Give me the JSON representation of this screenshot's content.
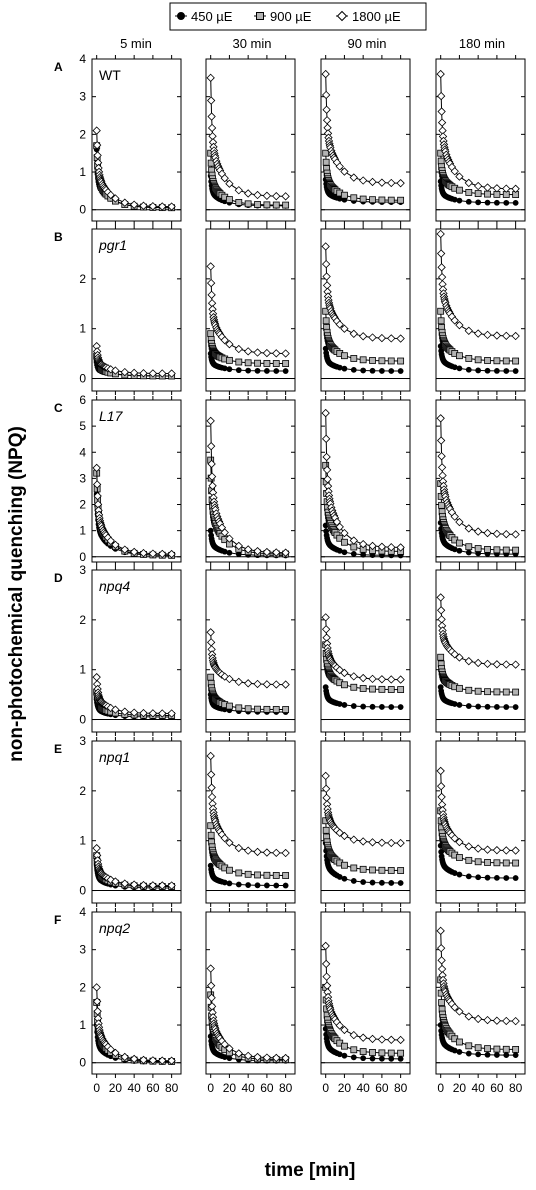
{
  "legend": {
    "entries": [
      {
        "label": "450 µE",
        "marker": "filled-circle",
        "fill": "#000000"
      },
      {
        "label": "900 µE",
        "marker": "gray-square",
        "fill": "#b3b3b3"
      },
      {
        "label": "1800 µE",
        "marker": "open-diamond",
        "fill": "#ffffff"
      }
    ]
  },
  "columns": [
    "5 min",
    "30 min",
    "90 min",
    "180 min"
  ],
  "ylabel": "non-photochemical quenching (NPQ)",
  "xlabel": "time [min]",
  "x_ticks": [
    "0",
    "20",
    "40",
    "60",
    "80"
  ],
  "colors": {
    "line": "#000000",
    "square_fill": "#b3b3b3",
    "background": "#ffffff"
  },
  "chart_data": {
    "type": "scatter",
    "description_of_x": "time [min] 0-90, 25 sample points per series",
    "x": [
      0,
      0.5,
      1,
      1.5,
      2,
      2.5,
      3,
      3.5,
      4,
      4.5,
      5,
      6,
      7,
      8,
      9,
      10,
      12,
      15,
      20,
      30,
      40,
      50,
      60,
      70,
      80
    ],
    "xlim": [
      -5,
      90
    ],
    "rows": [
      {
        "letter": "A",
        "genotype": "WT",
        "italic": false,
        "ylim": [
          -0.3,
          4
        ],
        "yticks": [
          0,
          1,
          2,
          3,
          4
        ],
        "panels": [
          {
            "series": [
              {
                "name": "450 µE",
                "start": 1.6,
                "end": 0.05
              },
              {
                "name": "900 µE",
                "start": 1.7,
                "end": 0.05
              },
              {
                "name": "1800 µE",
                "start": 2.1,
                "end": 0.08
              }
            ]
          },
          {
            "series": [
              {
                "name": "450 µE",
                "start": 0.9,
                "end": 0.1
              },
              {
                "name": "900 µE",
                "start": 1.5,
                "end": 0.12
              },
              {
                "name": "1800 µE",
                "start": 3.5,
                "end": 0.35
              }
            ]
          },
          {
            "series": [
              {
                "name": "450 µE",
                "start": 0.8,
                "end": 0.2
              },
              {
                "name": "900 µE",
                "start": 1.5,
                "end": 0.25
              },
              {
                "name": "1800 µE",
                "start": 3.6,
                "end": 0.7
              }
            ]
          },
          {
            "series": [
              {
                "name": "450 µE",
                "start": 0.75,
                "end": 0.18
              },
              {
                "name": "900 µE",
                "start": 1.5,
                "end": 0.4
              },
              {
                "name": "1800 µE",
                "start": 3.6,
                "end": 0.55
              }
            ]
          }
        ]
      },
      {
        "letter": "B",
        "genotype": "pgr1",
        "italic": true,
        "ylim": [
          -0.25,
          3
        ],
        "yticks": [
          0,
          1,
          2
        ],
        "panels": [
          {
            "series": [
              {
                "name": "450 µE",
                "start": 0.4,
                "end": 0.05
              },
              {
                "name": "900 µE",
                "start": 0.45,
                "end": 0.05
              },
              {
                "name": "1800 µE",
                "start": 0.65,
                "end": 0.1
              }
            ]
          },
          {
            "series": [
              {
                "name": "450 µE",
                "start": 0.5,
                "end": 0.15
              },
              {
                "name": "900 µE",
                "start": 0.9,
                "end": 0.3
              },
              {
                "name": "1800 µE",
                "start": 2.25,
                "end": 0.5
              }
            ]
          },
          {
            "series": [
              {
                "name": "450 µE",
                "start": 0.6,
                "end": 0.15
              },
              {
                "name": "900 µE",
                "start": 1.35,
                "end": 0.35
              },
              {
                "name": "1800 µE",
                "start": 2.65,
                "end": 0.8
              }
            ]
          },
          {
            "series": [
              {
                "name": "450 µE",
                "start": 0.65,
                "end": 0.15
              },
              {
                "name": "900 µE",
                "start": 1.35,
                "end": 0.35
              },
              {
                "name": "1800 µE",
                "start": 2.9,
                "end": 0.85
              }
            ]
          }
        ]
      },
      {
        "letter": "C",
        "genotype": "L17",
        "italic": true,
        "ylim": [
          -0.2,
          6
        ],
        "yticks": [
          0,
          1,
          2,
          3,
          4,
          5,
          6
        ],
        "panels": [
          {
            "series": [
              {
                "name": "450 µE",
                "start": 2.4,
                "end": 0.05
              },
              {
                "name": "900 µE",
                "start": 3.2,
                "end": 0.05
              },
              {
                "name": "1800 µE",
                "start": 3.4,
                "end": 0.1
              }
            ]
          },
          {
            "series": [
              {
                "name": "450 µE",
                "start": 1.0,
                "end": 0.05
              },
              {
                "name": "900 µE",
                "start": 3.7,
                "end": 0.1
              },
              {
                "name": "1800 µE",
                "start": 5.2,
                "end": 0.15
              }
            ]
          },
          {
            "series": [
              {
                "name": "450 µE",
                "start": 1.2,
                "end": 0.05
              },
              {
                "name": "900 µE",
                "start": 3.5,
                "end": 0.2
              },
              {
                "name": "1800 µE",
                "start": 5.5,
                "end": 0.35
              }
            ]
          },
          {
            "series": [
              {
                "name": "450 µE",
                "start": 1.3,
                "end": 0.1
              },
              {
                "name": "900 µE",
                "start": 2.8,
                "end": 0.25
              },
              {
                "name": "1800 µE",
                "start": 5.3,
                "end": 0.85
              }
            ]
          }
        ]
      },
      {
        "letter": "D",
        "genotype": "npq4",
        "italic": true,
        "ylim": [
          -0.25,
          3
        ],
        "yticks": [
          0,
          1,
          2,
          3
        ],
        "panels": [
          {
            "series": [
              {
                "name": "450 µE",
                "start": 0.4,
                "end": 0.05
              },
              {
                "name": "900 µE",
                "start": 0.55,
                "end": 0.08
              },
              {
                "name": "1800 µE",
                "start": 0.85,
                "end": 0.12
              }
            ]
          },
          {
            "series": [
              {
                "name": "450 µE",
                "start": 0.5,
                "end": 0.15
              },
              {
                "name": "900 µE",
                "start": 0.85,
                "end": 0.2
              },
              {
                "name": "1800 µE",
                "start": 1.75,
                "end": 0.7
              }
            ]
          },
          {
            "series": [
              {
                "name": "450 µE",
                "start": 0.65,
                "end": 0.25
              },
              {
                "name": "900 µE",
                "start": 1.5,
                "end": 0.6
              },
              {
                "name": "1800 µE",
                "start": 2.05,
                "end": 0.8
              }
            ]
          },
          {
            "series": [
              {
                "name": "450 µE",
                "start": 0.65,
                "end": 0.25
              },
              {
                "name": "900 µE",
                "start": 1.25,
                "end": 0.55
              },
              {
                "name": "1800 µE",
                "start": 2.45,
                "end": 1.1
              }
            ]
          }
        ]
      },
      {
        "letter": "E",
        "genotype": "npq1",
        "italic": true,
        "ylim": [
          -0.25,
          3
        ],
        "yticks": [
          0,
          1,
          2,
          3
        ],
        "panels": [
          {
            "series": [
              {
                "name": "450 µE",
                "start": 0.5,
                "end": 0.05
              },
              {
                "name": "900 µE",
                "start": 0.7,
                "end": 0.08
              },
              {
                "name": "1800 µE",
                "start": 0.85,
                "end": 0.1
              }
            ]
          },
          {
            "series": [
              {
                "name": "450 µE",
                "start": 0.5,
                "end": 0.1
              },
              {
                "name": "900 µE",
                "start": 1.3,
                "end": 0.3
              },
              {
                "name": "1800 µE",
                "start": 2.7,
                "end": 0.75
              }
            ]
          },
          {
            "series": [
              {
                "name": "450 µE",
                "start": 0.95,
                "end": 0.15
              },
              {
                "name": "900 µE",
                "start": 1.4,
                "end": 0.4
              },
              {
                "name": "1800 µE",
                "start": 2.3,
                "end": 0.95
              }
            ]
          },
          {
            "series": [
              {
                "name": "450 µE",
                "start": 0.9,
                "end": 0.25
              },
              {
                "name": "900 µE",
                "start": 1.6,
                "end": 0.55
              },
              {
                "name": "1800 µE",
                "start": 2.4,
                "end": 0.8
              }
            ]
          }
        ]
      },
      {
        "letter": "F",
        "genotype": "npq2",
        "italic": true,
        "ylim": [
          -0.3,
          4
        ],
        "yticks": [
          0,
          1,
          2,
          3,
          4
        ],
        "panels": [
          {
            "series": [
              {
                "name": "450 µE",
                "start": 1.0,
                "end": 0.02
              },
              {
                "name": "900 µE",
                "start": 1.6,
                "end": 0.03
              },
              {
                "name": "1800 µE",
                "start": 2.0,
                "end": 0.05
              }
            ]
          },
          {
            "series": [
              {
                "name": "450 µE",
                "start": 0.7,
                "end": 0.05
              },
              {
                "name": "900 µE",
                "start": 1.8,
                "end": 0.08
              },
              {
                "name": "1800 µE",
                "start": 2.5,
                "end": 0.12
              }
            ]
          },
          {
            "series": [
              {
                "name": "450 µE",
                "start": 0.9,
                "end": 0.1
              },
              {
                "name": "900 µE",
                "start": 2.0,
                "end": 0.25
              },
              {
                "name": "1800 µE",
                "start": 3.1,
                "end": 0.6
              }
            ]
          },
          {
            "series": [
              {
                "name": "450 µE",
                "start": 1.0,
                "end": 0.2
              },
              {
                "name": "900 µE",
                "start": 2.2,
                "end": 0.35
              },
              {
                "name": "1800 µE",
                "start": 3.5,
                "end": 1.1
              }
            ]
          }
        ]
      }
    ]
  }
}
